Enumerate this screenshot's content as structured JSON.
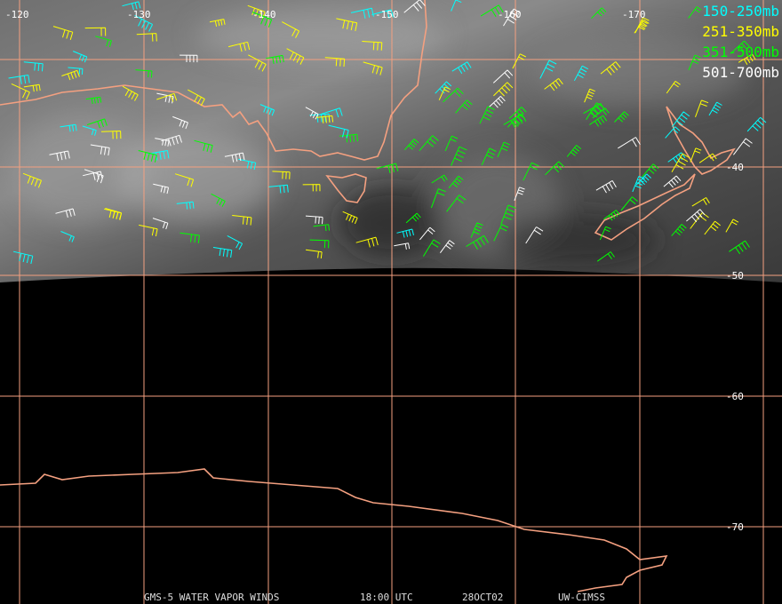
{
  "map": {
    "lon_labels": [
      "-120",
      "-130",
      "-140",
      "-150",
      "-160",
      "-170"
    ],
    "lat_labels": [
      "-40",
      "-50",
      "-60",
      "-70"
    ],
    "legend": [
      "150-250mb",
      "251-350mb",
      "351-500mb",
      "501-700mb"
    ],
    "footer": [
      "GMS-5 WATER VAPOR WINDS",
      "18:00 UTC",
      "28OCT02",
      "UW-CIMSS"
    ]
  }
}
